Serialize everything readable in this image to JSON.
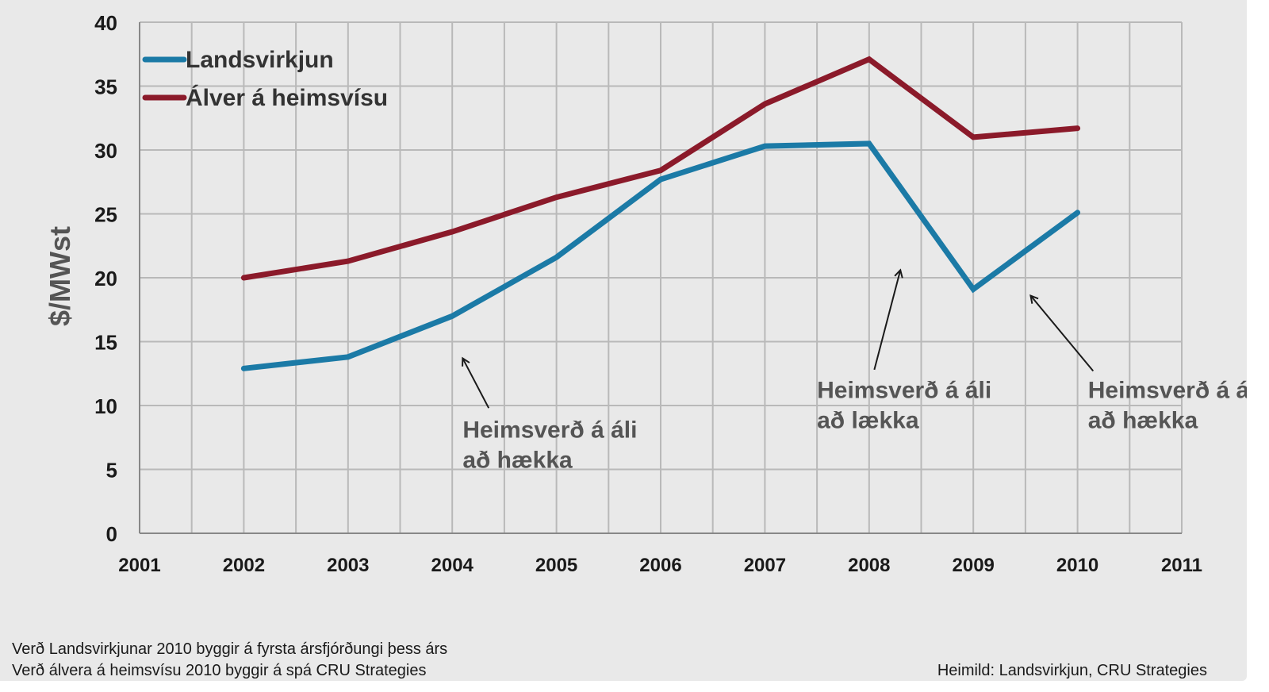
{
  "chart_data": {
    "type": "line",
    "title": "",
    "xlabel": "",
    "ylabel": "$/MWst",
    "x_ticks": [
      "2001",
      "2002",
      "2003",
      "2004",
      "2005",
      "2006",
      "2007",
      "2008",
      "2009",
      "2010",
      "2011"
    ],
    "y_ticks": [
      "0",
      "5",
      "10",
      "15",
      "20",
      "25",
      "30",
      "35",
      "40"
    ],
    "xlim": [
      2001,
      2011
    ],
    "ylim": [
      0,
      40
    ],
    "grid": true,
    "legend_position": "top-left",
    "series": [
      {
        "name": "Landsvirkjun",
        "color": "#1b7aa6",
        "x": [
          2002,
          2003,
          2004,
          2005,
          2006,
          2007,
          2008,
          2009,
          2010
        ],
        "y": [
          12.9,
          13.8,
          17.0,
          21.6,
          27.7,
          30.3,
          30.5,
          19.1,
          25.1
        ]
      },
      {
        "name": "Álver á heimsvísu",
        "color": "#8b1a2a",
        "x": [
          2002,
          2003,
          2004,
          2005,
          2006,
          2007,
          2008,
          2009,
          2010
        ],
        "y": [
          20.0,
          21.3,
          23.6,
          26.3,
          28.4,
          33.6,
          37.1,
          31.0,
          31.7
        ]
      }
    ],
    "annotations": [
      {
        "lines": [
          "Heimsverð á áli",
          "að hækka"
        ],
        "text_at": [
          2004.1,
          7.5
        ],
        "arrow_from": [
          2004.35,
          9.8
        ],
        "arrow_to": [
          2004.1,
          13.7
        ]
      },
      {
        "lines": [
          "Heimsverð á áli",
          "að lækka"
        ],
        "text_at": [
          2007.5,
          10.6
        ],
        "arrow_from": [
          2008.05,
          12.8
        ],
        "arrow_to": [
          2008.3,
          20.6
        ]
      },
      {
        "lines": [
          "Heimsverð á áli",
          "að hækka"
        ],
        "text_at": [
          2010.1,
          10.6
        ],
        "arrow_from": [
          2010.15,
          12.7
        ],
        "arrow_to": [
          2009.55,
          18.6
        ]
      }
    ]
  },
  "notes": {
    "line1": "Verð Landsvirkjunar 2010 byggir á fyrsta ársfjórðungi þess árs",
    "line2": "Verð álvera á heimsvísu 2010 byggir á spá CRU Strategies",
    "source": "Heimild: Landsvirkjun, CRU Strategies"
  },
  "colors": {
    "background": "#e9e9e9",
    "grid": "#b9b9b9",
    "axis_text": "#1a1a1a",
    "label_text": "#555555"
  }
}
